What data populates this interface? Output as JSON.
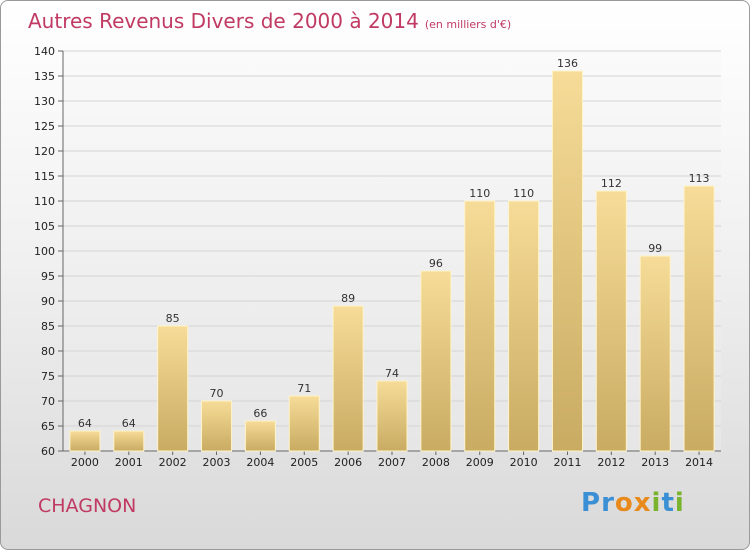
{
  "title": "Autres Revenus Divers de 2000 à 2014",
  "unit": "(en milliers d'€)",
  "place": "CHAGNON",
  "brand": {
    "letters": [
      "P",
      "r",
      "o",
      "x",
      "i",
      "t",
      "i"
    ],
    "colors": [
      "#3b8fd4",
      "#3b8fd4",
      "#e8891b",
      "#e8891b",
      "#7ab32e",
      "#3b8fd4",
      "#7ab32e"
    ]
  },
  "colors": {
    "bar_top": "#f6dc98",
    "bar_bottom": "#c9ab62",
    "accent": "#c03a63"
  },
  "chart_data": {
    "type": "bar",
    "categories": [
      "2000",
      "2001",
      "2002",
      "2003",
      "2004",
      "2005",
      "2006",
      "2007",
      "2008",
      "2009",
      "2010",
      "2011",
      "2012",
      "2013",
      "2014"
    ],
    "values": [
      64,
      64,
      85,
      70,
      66,
      71,
      89,
      74,
      96,
      110,
      110,
      136,
      112,
      99,
      113
    ],
    "ylim": [
      60,
      140
    ],
    "yticks": [
      60,
      65,
      70,
      75,
      80,
      85,
      90,
      95,
      100,
      105,
      110,
      115,
      120,
      125,
      130,
      135,
      140
    ],
    "grid": true,
    "title": "Autres Revenus Divers de 2000 à 2014",
    "xlabel": "",
    "ylabel": ""
  }
}
